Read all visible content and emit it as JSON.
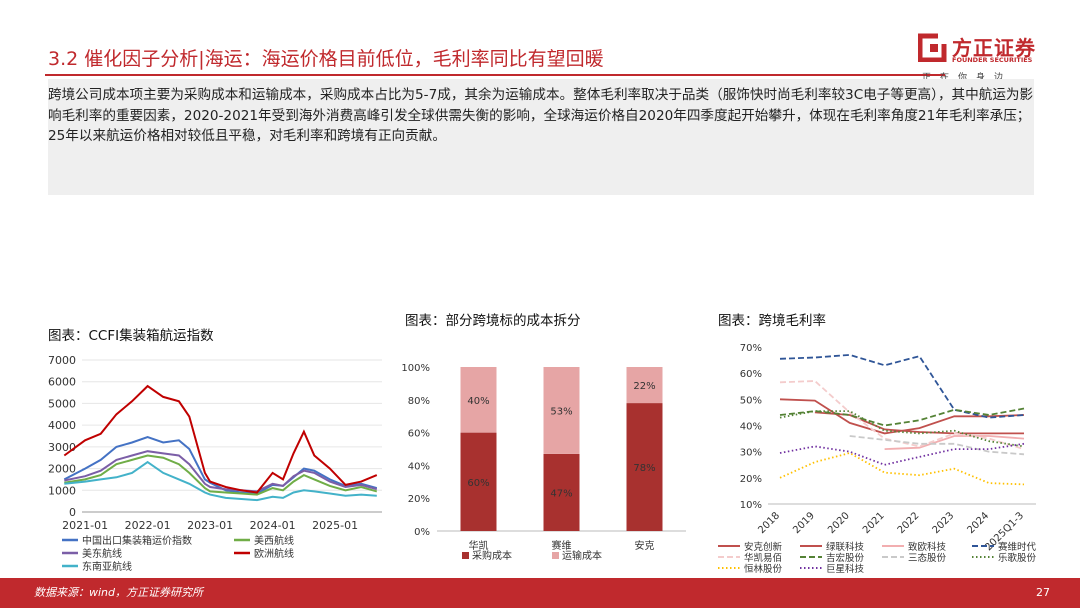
{
  "header": {
    "title": "3.2 催化因子分析|海运：海运价格目前低位，毛利率同比有望回暖",
    "logo_name": "方正证券",
    "logo_en": "FOUNDER SECURITIES",
    "logo_slogan": "正在你身边",
    "brand_color": "#c0292d"
  },
  "summary": "跨境公司成本项主要为采购成本和运输成本，采购成本占比为5-7成，其余为运输成本。整体毛利率取决于品类（服饰快时尚毛利率较3C电子等更高），其中航运为影响毛利率的重要因素，2020-2021年受到海外消费高峰引发全球供需失衡的影响，全球海运价格自2020年四季度起开始攀升，体现在毛利率角度21年毛利率承压；25年以来航运价格相对较低且平稳，对毛利率和跨境有正向贡献。",
  "charts": {
    "c1_title": "图表：CCFI集装箱航运指数",
    "c2_title": "图表：部分跨境标的成本拆分",
    "c3_title": "图表：跨境毛利率"
  },
  "chart_data": [
    {
      "type": "line",
      "title": "图表：CCFI集装箱航运指数",
      "x_ticks": [
        "2021-01",
        "2022-01",
        "2023-01",
        "2024-01",
        "2025-01"
      ],
      "y_ticks": [
        0,
        1000,
        2000,
        3000,
        4000,
        5000,
        6000,
        7000
      ],
      "ylim": [
        0,
        7000
      ],
      "legend_position": "bottom",
      "series": [
        {
          "name": "中国出口集装箱运价指数",
          "color": "#4472c4",
          "x": [
            "2020-09",
            "2021-01",
            "2021-04",
            "2021-07",
            "2021-10",
            "2022-01",
            "2022-04",
            "2022-07",
            "2022-09",
            "2022-12",
            "2023-01",
            "2023-04",
            "2023-07",
            "2023-10",
            "2024-01",
            "2024-03",
            "2024-05",
            "2024-07",
            "2024-09",
            "2024-12",
            "2025-03",
            "2025-06",
            "2025-09"
          ],
          "values": [
            1500,
            2000,
            2400,
            3000,
            3200,
            3450,
            3200,
            3300,
            2900,
            1500,
            1350,
            1000,
            900,
            850,
            1250,
            1200,
            1600,
            2000,
            1900,
            1500,
            1200,
            1300,
            1100
          ]
        },
        {
          "name": "美西航线",
          "color": "#70ad47",
          "x": [
            "2020-09",
            "2021-01",
            "2021-04",
            "2021-07",
            "2021-10",
            "2022-01",
            "2022-04",
            "2022-07",
            "2022-09",
            "2022-12",
            "2023-01",
            "2023-04",
            "2023-07",
            "2023-10",
            "2024-01",
            "2024-03",
            "2024-05",
            "2024-07",
            "2024-09",
            "2024-12",
            "2025-03",
            "2025-06",
            "2025-09"
          ],
          "values": [
            1350,
            1500,
            1700,
            2200,
            2400,
            2600,
            2500,
            2200,
            1800,
            1100,
            950,
            900,
            850,
            800,
            1100,
            1000,
            1400,
            1700,
            1500,
            1200,
            1000,
            1150,
            950
          ]
        },
        {
          "name": "美东航线",
          "color": "#7b5ea7",
          "x": [
            "2020-09",
            "2021-01",
            "2021-04",
            "2021-07",
            "2021-10",
            "2022-01",
            "2022-04",
            "2022-07",
            "2022-09",
            "2022-12",
            "2023-01",
            "2023-04",
            "2023-07",
            "2023-10",
            "2024-01",
            "2024-03",
            "2024-05",
            "2024-07",
            "2024-09",
            "2024-12",
            "2025-03",
            "2025-06",
            "2025-09"
          ],
          "values": [
            1450,
            1650,
            1900,
            2400,
            2600,
            2800,
            2700,
            2600,
            2200,
            1300,
            1150,
            1050,
            1000,
            950,
            1300,
            1200,
            1650,
            1900,
            1800,
            1400,
            1150,
            1250,
            1050
          ]
        },
        {
          "name": "欧洲航线",
          "color": "#c00000",
          "x": [
            "2020-09",
            "2021-01",
            "2021-04",
            "2021-07",
            "2021-10",
            "2022-01",
            "2022-04",
            "2022-07",
            "2022-09",
            "2022-12",
            "2023-01",
            "2023-04",
            "2023-07",
            "2023-10",
            "2024-01",
            "2024-03",
            "2024-05",
            "2024-07",
            "2024-09",
            "2024-12",
            "2025-03",
            "2025-06",
            "2025-09"
          ],
          "values": [
            2600,
            3300,
            3600,
            4500,
            5100,
            5800,
            5300,
            5100,
            4400,
            1800,
            1400,
            1150,
            1000,
            900,
            1800,
            1500,
            2700,
            3700,
            2600,
            2000,
            1250,
            1400,
            1700
          ]
        },
        {
          "name": "东南亚航线",
          "color": "#43b2c9",
          "x": [
            "2020-09",
            "2021-01",
            "2021-04",
            "2021-07",
            "2021-10",
            "2022-01",
            "2022-04",
            "2022-07",
            "2022-09",
            "2022-12",
            "2023-01",
            "2023-04",
            "2023-07",
            "2023-10",
            "2024-01",
            "2024-03",
            "2024-05",
            "2024-07",
            "2024-09",
            "2024-12",
            "2025-03",
            "2025-06",
            "2025-09"
          ],
          "values": [
            1300,
            1400,
            1500,
            1600,
            1800,
            2300,
            1800,
            1500,
            1300,
            900,
            800,
            650,
            600,
            550,
            700,
            650,
            900,
            1000,
            950,
            850,
            750,
            800,
            750
          ]
        }
      ]
    },
    {
      "type": "bar",
      "stacked": true,
      "title": "图表：部分跨境标的成本拆分",
      "categories": [
        "华凯",
        "赛维",
        "安克"
      ],
      "y_ticks": [
        "0%",
        "20%",
        "40%",
        "60%",
        "80%",
        "100%"
      ],
      "ylim": [
        0,
        100
      ],
      "legend_position": "bottom",
      "series": [
        {
          "name": "采购成本",
          "color": "#a8312f",
          "values": [
            60,
            47,
            78
          ],
          "labels": [
            "60%",
            "47%",
            "78%"
          ]
        },
        {
          "name": "运输成本",
          "color": "#e6a5a5",
          "values": [
            40,
            53,
            22
          ],
          "labels": [
            "40%",
            "53%",
            "22%"
          ]
        }
      ]
    },
    {
      "type": "line",
      "title": "图表：跨境毛利率",
      "categories": [
        "2018",
        "2019",
        "2020",
        "2021",
        "2022",
        "2023",
        "2024",
        "2025Q1-3"
      ],
      "y_ticks": [
        "10%",
        "20%",
        "30%",
        "40%",
        "50%",
        "60%",
        "70%"
      ],
      "ylim": [
        10,
        70
      ],
      "legend_position": "bottom",
      "series": [
        {
          "name": "安克创新",
          "color": "#c0504d",
          "dash": "solid",
          "values": [
            50,
            49.5,
            41,
            37,
            39,
            43.5,
            43.5,
            44
          ]
        },
        {
          "name": "绿联科技",
          "color": "#c0504d",
          "dash": "solid",
          "values": [
            null,
            45,
            44,
            38.5,
            37.5,
            37,
            37,
            37
          ]
        },
        {
          "name": "致欧科技",
          "color": "#f2aeb0",
          "dash": "solid",
          "values": [
            null,
            null,
            null,
            31,
            31.5,
            36,
            36,
            35
          ]
        },
        {
          "name": "赛维时代",
          "color": "#2f5597",
          "dash": "dash",
          "values": [
            65.5,
            66,
            67,
            63,
            66.5,
            46,
            43,
            44
          ]
        },
        {
          "name": "华凯易佰",
          "color": "#f4cccc",
          "dash": "dash",
          "values": [
            56.5,
            57,
            45,
            35,
            32,
            37,
            35,
            31
          ]
        },
        {
          "name": "吉宏股份",
          "color": "#548235",
          "dash": "dash",
          "values": [
            44,
            45.5,
            44,
            40,
            42,
            46,
            44,
            46.5
          ]
        },
        {
          "name": "三态股份",
          "color": "#c9c9c9",
          "dash": "dash",
          "values": [
            null,
            null,
            36,
            34.5,
            33,
            33,
            30,
            29
          ]
        },
        {
          "name": "乐歌股份",
          "color": "#548235",
          "dash": "dot",
          "values": [
            43,
            45.5,
            45.5,
            38,
            37,
            38,
            34,
            32
          ]
        },
        {
          "name": "恒林股份",
          "color": "#ffc000",
          "dash": "dot",
          "values": [
            20,
            26,
            29.5,
            22,
            21,
            23.5,
            18,
            17.5
          ]
        },
        {
          "name": "巨星科技",
          "color": "#7030a0",
          "dash": "dot",
          "values": [
            29.5,
            32,
            30,
            25,
            28,
            31,
            31,
            33
          ]
        }
      ]
    }
  ],
  "footer": {
    "source": "数据来源：wind，方正证券研究所",
    "page": "27"
  }
}
